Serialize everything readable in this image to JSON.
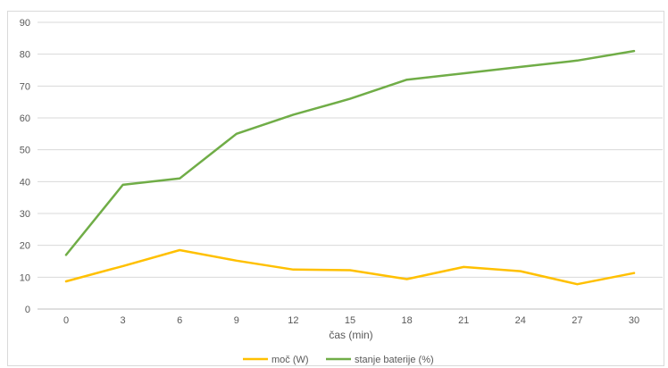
{
  "chart_data": {
    "type": "line",
    "title": "",
    "xlabel": "čas (min)",
    "ylabel": "",
    "x": [
      0,
      3,
      6,
      9,
      12,
      15,
      18,
      21,
      24,
      27,
      30
    ],
    "ylim": [
      0,
      90
    ],
    "yticks": [
      0,
      10,
      20,
      30,
      40,
      50,
      60,
      70,
      80,
      90
    ],
    "grid": true,
    "legend_position": "bottom",
    "series": [
      {
        "name": "moč (W)",
        "color": "#FFC000",
        "values": [
          8.7,
          13.5,
          18.5,
          15.2,
          12.4,
          12.2,
          9.4,
          13.2,
          11.9,
          7.8,
          11.3
        ]
      },
      {
        "name": "stanje baterije (%)",
        "color": "#70AD47",
        "values": [
          17,
          39,
          41,
          55,
          61,
          66,
          72,
          74,
          76,
          78,
          81
        ]
      }
    ]
  }
}
